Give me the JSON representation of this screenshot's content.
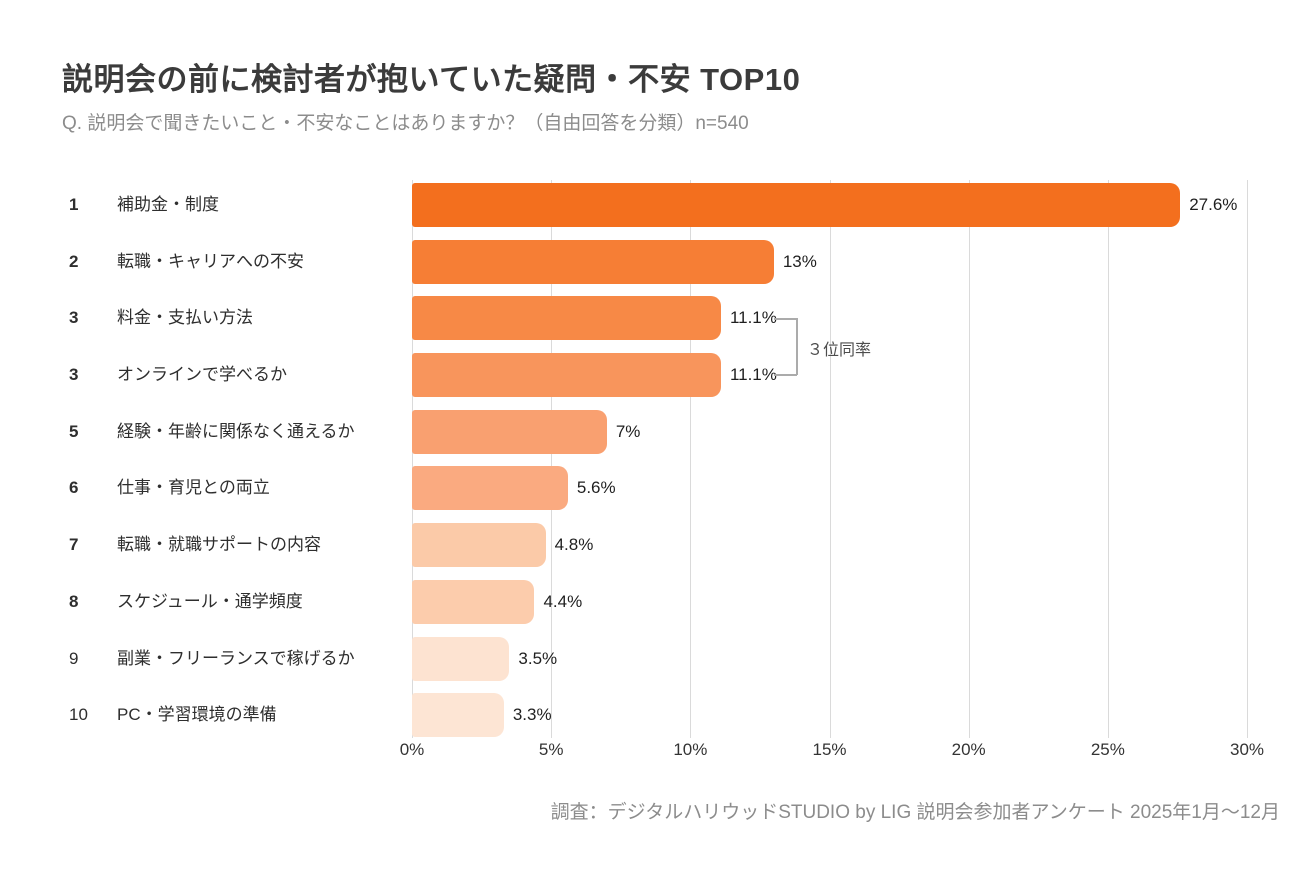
{
  "header": {
    "title": "説明会の前に検討者が抱いていた疑問・不安 TOP10",
    "subtitle": "Q. 説明会で聞きたいこと・不安なことはありますか？（自由回答を分類）n=540"
  },
  "chart_data": {
    "type": "bar",
    "orientation": "horizontal",
    "title": "説明会の前に検討者が抱いていた疑問・不安 TOP10",
    "subtitle": "Q. 説明会で聞きたいこと・不安なことはありますか？（自由回答を分類）n=540",
    "sample_size": "n=540",
    "xlabel": "",
    "ylabel": "",
    "xlim": [
      0,
      30
    ],
    "x_ticks": [
      "0%",
      "5%",
      "10%",
      "15%",
      "20%",
      "25%",
      "30%"
    ],
    "grid": "vertical",
    "legend": "none",
    "categories": [
      "補助金・制度",
      "転職・キャリアへの不安",
      "料金・支払い方法",
      "オンラインで学べるか",
      "経験・年齢に関係なく通えるか",
      "仕事・育児との両立",
      "転職・就職サポートの内容",
      "スケジュール・通学頻度",
      "副業・フリーランスで稼げるか",
      "PC・学習環境の準備"
    ],
    "values": [
      27.6,
      13,
      11.1,
      11.1,
      7,
      5.6,
      4.8,
      4.4,
      3.5,
      3.3
    ],
    "rows": [
      {
        "rank": "1",
        "label": "補助金・制度",
        "value": 27.6,
        "value_label": "27.6%",
        "color": "#F36F1E",
        "rank_bold": true
      },
      {
        "rank": "2",
        "label": "転職・キャリアへの不安",
        "value": 13,
        "value_label": "13%",
        "color": "#F67E35",
        "rank_bold": true
      },
      {
        "rank": "3",
        "label": "料金・支払い方法",
        "value": 11.1,
        "value_label": "11.1%",
        "color": "#F78946",
        "rank_bold": true
      },
      {
        "rank": "3",
        "label": "オンラインで学べるか",
        "value": 11.1,
        "value_label": "11.1%",
        "color": "#F8955C",
        "rank_bold": true
      },
      {
        "rank": "5",
        "label": "経験・年齢に関係なく通えるか",
        "value": 7,
        "value_label": "7%",
        "color": "#F9A070",
        "rank_bold": true
      },
      {
        "rank": "6",
        "label": "仕事・育児との両立",
        "value": 5.6,
        "value_label": "5.6%",
        "color": "#FAAA80",
        "rank_bold": true
      },
      {
        "rank": "7",
        "label": "転職・就職サポートの内容",
        "value": 4.8,
        "value_label": "4.8%",
        "color": "#FBCAA8",
        "rank_bold": true
      },
      {
        "rank": "8",
        "label": "スケジュール・通学頻度",
        "value": 4.4,
        "value_label": "4.4%",
        "color": "#FCCCAC",
        "rank_bold": true
      },
      {
        "rank": "9",
        "label": "副業・フリーランスで稼げるか",
        "value": 3.5,
        "value_label": "3.5%",
        "color": "#FDE3D1",
        "rank_bold": false
      },
      {
        "rank": "10",
        "label": "PC・学習環境の準備",
        "value": 3.3,
        "value_label": "3.3%",
        "color": "#FDE5D4",
        "rank_bold": false
      }
    ],
    "annotation": {
      "text": "３位同率",
      "applies_to_ranks": [
        3,
        3
      ]
    },
    "colors": {
      "bar_max": "#F36F1E",
      "bar_min": "#FDE5D4",
      "gridline": "#dadada",
      "bracket": "#ababab"
    }
  },
  "footer": {
    "source": "調査：デジタルハリウッドSTUDIO by LIG 説明会参加者アンケート 2025年1月〜12月"
  }
}
